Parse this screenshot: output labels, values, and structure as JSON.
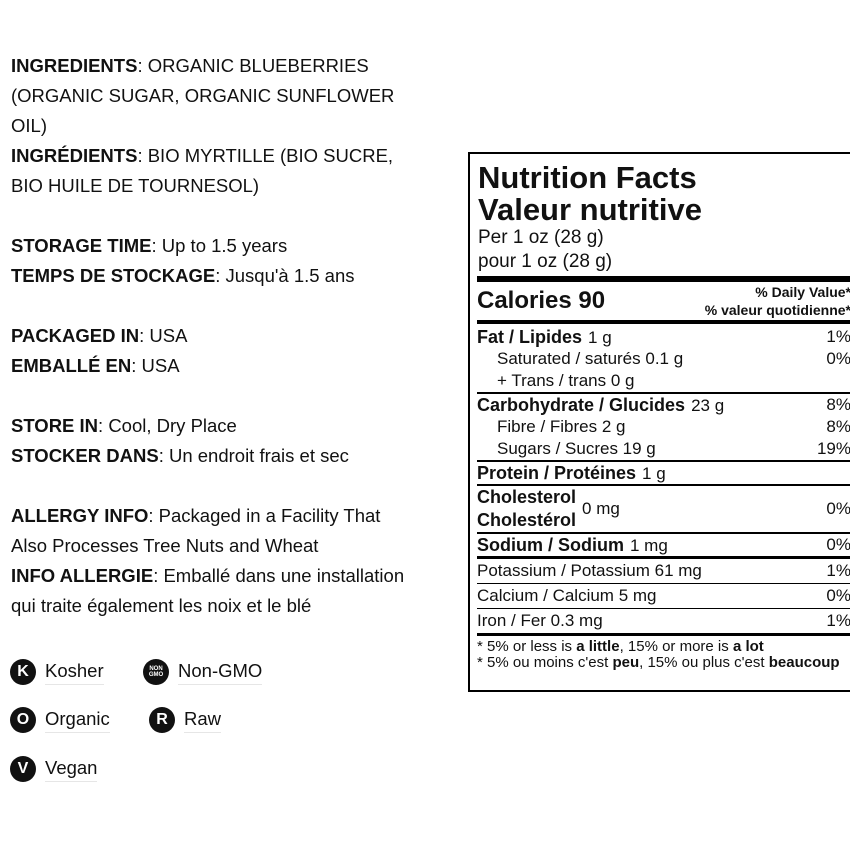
{
  "info": {
    "sections": [
      [
        {
          "label": "INGREDIENTS",
          "lines": [
            ": ORGANIC BLUEBERRIES",
            "(ORGANIC SUGAR, ORGANIC SUNFLOWER",
            "OIL)"
          ]
        },
        {
          "label": "INGRÉDIENTS",
          "lines": [
            ": BIO MYRTILLE (BIO SUCRE,",
            "BIO HUILE DE TOURNESOL)"
          ]
        }
      ],
      [
        {
          "label": "STORAGE TIME",
          "lines": [
            ": Up to 1.5 years"
          ]
        },
        {
          "label": "TEMPS DE STOCKAGE",
          "lines": [
            ": Jusqu'à 1.5 ans"
          ]
        }
      ],
      [
        {
          "label": "PACKAGED IN",
          "lines": [
            ": USA"
          ]
        },
        {
          "label": "EMBALLÉ EN",
          "lines": [
            ": USA"
          ]
        }
      ],
      [
        {
          "label": "STORE IN",
          "lines": [
            ": Cool, Dry Place"
          ]
        },
        {
          "label": "STOCKER DANS",
          "lines": [
            ": Un endroit frais et sec"
          ]
        }
      ],
      [
        {
          "label": "ALLERGY INFO",
          "lines": [
            ": Packaged in a Facility That",
            "Also Processes Tree Nuts and Wheat"
          ]
        },
        {
          "label": "INFO ALLERGIE",
          "lines": [
            ": Emballé dans une installation",
            "qui traite également les noix et le blé"
          ]
        }
      ]
    ]
  },
  "badges": [
    {
      "icon": "K",
      "label": "Kosher"
    },
    {
      "icon": [
        "NON",
        "GMO"
      ],
      "label": "Non-GMO"
    },
    {
      "icon": "O",
      "label": "Organic"
    },
    {
      "icon": "R",
      "label": "Raw"
    },
    {
      "icon": "V",
      "label": "Vegan"
    }
  ],
  "nutrition": {
    "title": [
      "Nutrition Facts",
      "Valeur nutritive"
    ],
    "serving": [
      "Per 1 oz (28 g)",
      "pour 1 oz (28 g)"
    ],
    "calories": "Calories 90",
    "dv_header": [
      "% Daily Value*",
      "% valeur quotidienne*"
    ],
    "rows": [
      {
        "name": "Fat / Lipides",
        "amount": "1 g",
        "dv": "1%"
      },
      {
        "name": "Saturated / saturés 0.1 g",
        "dv": "0%"
      },
      {
        "name": "+ Trans / trans 0 g"
      },
      {
        "name": "Carbohydrate / Glucides",
        "amount": "23 g",
        "dv": "8%"
      },
      {
        "name": "Fibre / Fibres 2 g",
        "dv": "8%"
      },
      {
        "name": "Sugars / Sucres 19 g",
        "dv": "19%"
      },
      {
        "name": "Protein / Protéines",
        "amount": "1 g"
      },
      {
        "name": [
          "Cholesterol",
          "Cholestérol"
        ],
        "amount": "0 mg",
        "dv": "0%"
      },
      {
        "name": "Sodium / Sodium",
        "amount": "1 mg",
        "dv": "0%"
      },
      {
        "name": "Potassium / Potassium 61 mg",
        "dv": "1%"
      },
      {
        "name": "Calcium / Calcium 5 mg",
        "dv": "0%"
      },
      {
        "name": "Iron / Fer 0.3 mg",
        "dv": "1%"
      }
    ],
    "footnotes": [
      [
        "* 5% or less is ",
        "a little",
        ", 15% or more is ",
        "a lot"
      ],
      [
        "* 5% ou moins c'est ",
        "peu",
        ", 15% ou plus c'est ",
        "beaucoup"
      ]
    ]
  }
}
